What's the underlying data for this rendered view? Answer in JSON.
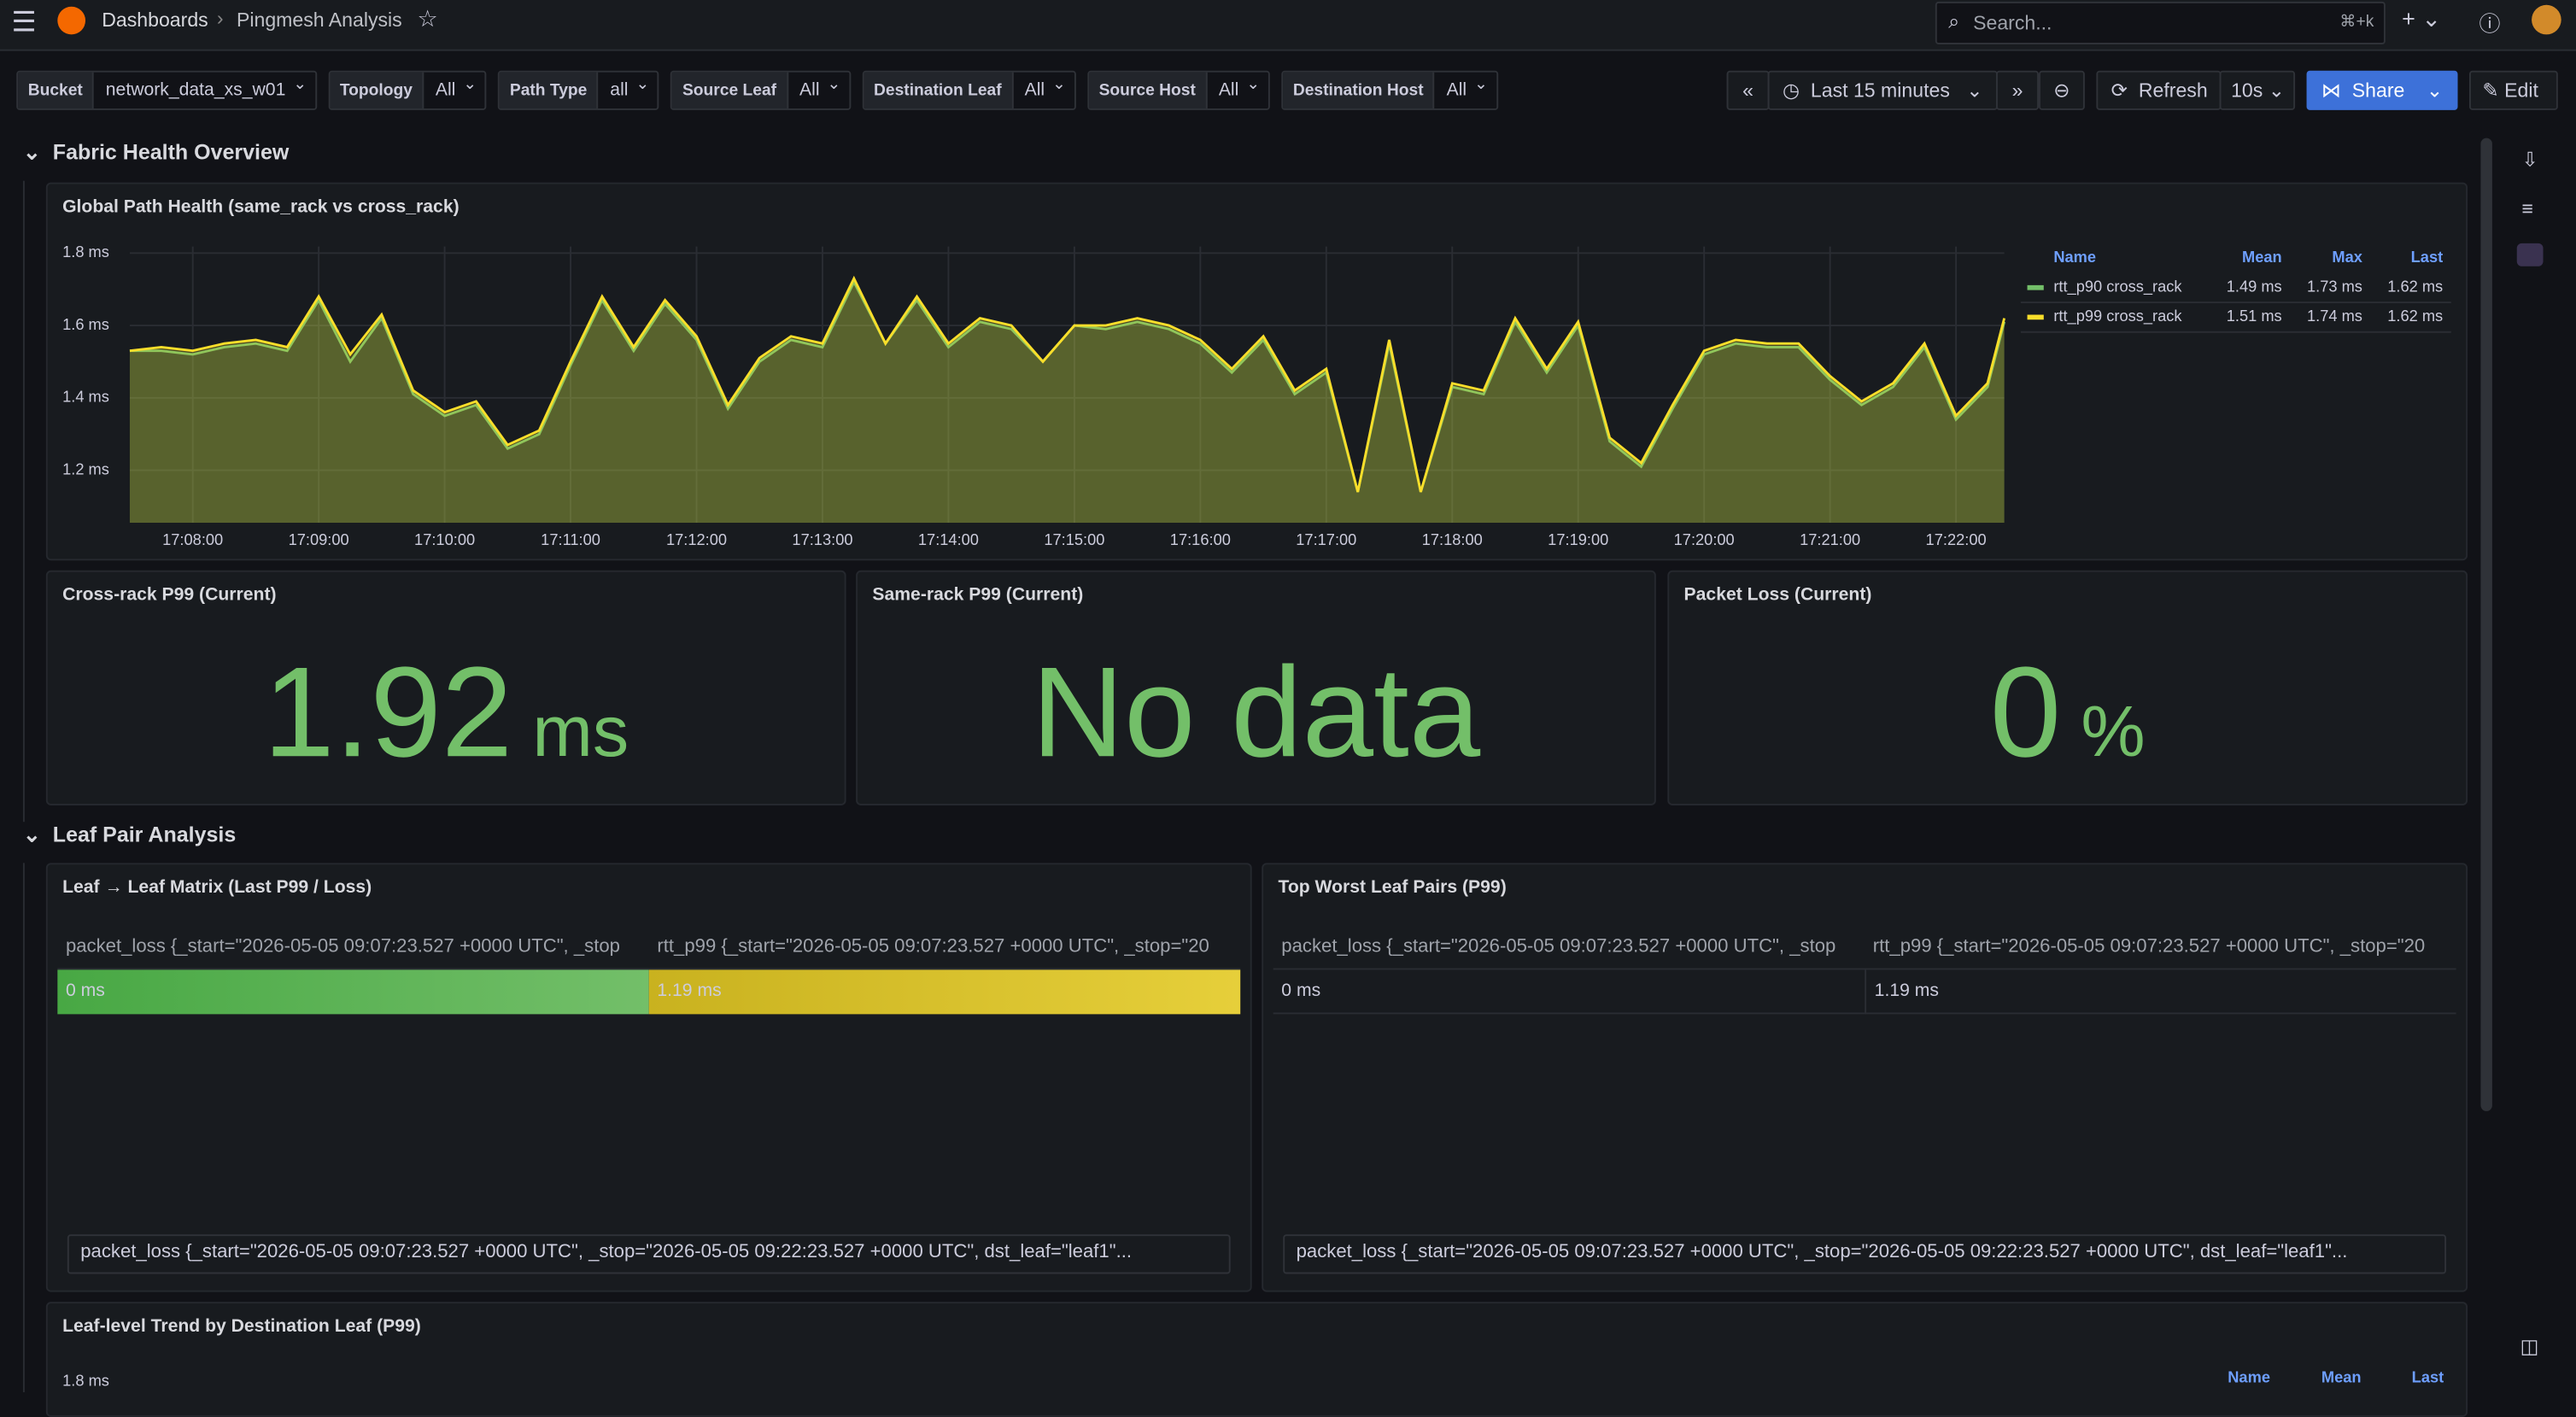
{
  "header": {
    "breadcrumb": [
      "Dashboards",
      "Pingmesh Analysis"
    ],
    "search": "Search...",
    "shortcut": "⌘+k"
  },
  "variables": [
    {
      "label": "Bucket",
      "value": "network_data_xs_w01"
    },
    {
      "label": "Topology",
      "value": "All"
    },
    {
      "label": "Path Type",
      "value": "all"
    },
    {
      "label": "Source Leaf",
      "value": "All"
    },
    {
      "label": "Destination Leaf",
      "value": "All"
    },
    {
      "label": "Source Host",
      "value": "All"
    },
    {
      "label": "Destination Host",
      "value": "All"
    }
  ],
  "time_controls": {
    "range": "Last 15 minutes",
    "refresh": "Refresh",
    "interval": "10s",
    "share": "Share",
    "edit": "Edit"
  },
  "rows": [
    "Fabric Health Overview",
    "Leaf Pair Analysis"
  ],
  "chart_data": {
    "type": "line",
    "title": "Global Path Health (same_rack vs cross_rack)",
    "x": [
      61650,
      61665,
      61680,
      61695,
      61710,
      61725,
      61740,
      61755,
      61770,
      61785,
      61800,
      61815,
      61830,
      61845,
      61860,
      61875,
      61890,
      61905,
      61920,
      61935,
      61950,
      61965,
      61980,
      61995,
      62010,
      62025,
      62040,
      62055,
      62070,
      62085,
      62100,
      62115,
      62130,
      62145,
      62160,
      62175,
      62190,
      62205,
      62220,
      62235,
      62250,
      62265,
      62280,
      62295,
      62310,
      62325,
      62340,
      62355,
      62370,
      62385,
      62400,
      62415,
      62430,
      62445,
      62460,
      62475,
      62490,
      62505,
      62520,
      62535,
      62543
    ],
    "xlim": [
      61650,
      62543
    ],
    "xticks": [
      {
        "value": 61680,
        "label": "17:08:00"
      },
      {
        "value": 61740,
        "label": "17:09:00"
      },
      {
        "value": 61800,
        "label": "17:10:00"
      },
      {
        "value": 61860,
        "label": "17:11:00"
      },
      {
        "value": 61920,
        "label": "17:12:00"
      },
      {
        "value": 61980,
        "label": "17:13:00"
      },
      {
        "value": 62040,
        "label": "17:14:00"
      },
      {
        "value": 62100,
        "label": "17:15:00"
      },
      {
        "value": 62160,
        "label": "17:16:00"
      },
      {
        "value": 62220,
        "label": "17:17:00"
      },
      {
        "value": 62280,
        "label": "17:18:00"
      },
      {
        "value": 62340,
        "label": "17:19:00"
      },
      {
        "value": 62400,
        "label": "17:20:00"
      },
      {
        "value": 62460,
        "label": "17:21:00"
      },
      {
        "value": 62520,
        "label": "17:22:00"
      }
    ],
    "ylim": [
      1.055,
      1.818
    ],
    "yticks": [
      {
        "value": 1.2,
        "label": "1.2 ms"
      },
      {
        "value": 1.4,
        "label": "1.4 ms"
      },
      {
        "value": 1.6,
        "label": "1.6 ms"
      },
      {
        "value": 1.8,
        "label": "1.8 ms"
      }
    ],
    "grid": true,
    "series": [
      {
        "name": "rtt_p90 cross_rack",
        "color": "#73bf69",
        "values": [
          1.53,
          1.53,
          1.52,
          1.54,
          1.55,
          1.53,
          1.67,
          1.5,
          1.62,
          1.41,
          1.35,
          1.38,
          1.26,
          1.3,
          1.49,
          1.67,
          1.53,
          1.66,
          1.56,
          1.37,
          1.5,
          1.56,
          1.54,
          1.72,
          1.55,
          1.67,
          1.54,
          1.61,
          1.59,
          1.5,
          1.6,
          1.59,
          1.61,
          1.59,
          1.55,
          1.47,
          1.56,
          1.41,
          1.47,
          1.14,
          1.55,
          1.14,
          1.43,
          1.41,
          1.61,
          1.47,
          1.6,
          1.28,
          1.21,
          1.37,
          1.52,
          1.55,
          1.54,
          1.54,
          1.45,
          1.38,
          1.43,
          1.54,
          1.34,
          1.43,
          1.61
        ]
      },
      {
        "name": "rtt_p99 cross_rack",
        "color": "#fade2a",
        "values": [
          1.53,
          1.54,
          1.53,
          1.55,
          1.56,
          1.54,
          1.68,
          1.52,
          1.63,
          1.42,
          1.36,
          1.39,
          1.27,
          1.31,
          1.5,
          1.68,
          1.54,
          1.67,
          1.57,
          1.38,
          1.51,
          1.57,
          1.55,
          1.73,
          1.55,
          1.68,
          1.55,
          1.62,
          1.6,
          1.5,
          1.6,
          1.6,
          1.62,
          1.6,
          1.56,
          1.48,
          1.57,
          1.42,
          1.48,
          1.14,
          1.56,
          1.14,
          1.44,
          1.42,
          1.62,
          1.48,
          1.61,
          1.29,
          1.22,
          1.38,
          1.53,
          1.56,
          1.55,
          1.55,
          1.46,
          1.39,
          1.44,
          1.55,
          1.35,
          1.44,
          1.62
        ]
      }
    ],
    "legend_columns": [
      "Name",
      "Mean",
      "Max",
      "Last"
    ],
    "legend_stats": [
      [
        "1.49 ms",
        "1.73 ms",
        "1.62 ms"
      ],
      [
        "1.51 ms",
        "1.74 ms",
        "1.62 ms"
      ]
    ]
  },
  "stats": [
    {
      "title": "Cross-rack P99 (Current)",
      "value": 1.92,
      "unit": "ms"
    },
    {
      "title": "Same-rack P99 (Current)",
      "value": "No data"
    },
    {
      "title": "Packet Loss (Current)",
      "value": 0,
      "unit": "%"
    }
  ],
  "tables": [
    {
      "title": "Leaf → Leaf Matrix (Last P99 / Loss)",
      "headers": [
        "packet_loss {_start=\"2026-05-05 09:07:23.527 +0000 UTC\", _stop",
        "rtt_p99 {_start=\"2026-05-05 09:07:23.527 +0000 UTC\", _stop=\"20"
      ],
      "rows": [
        [
          "0 ms",
          "1.19 ms"
        ]
      ],
      "selector": "packet_loss {_start=\"2026-05-05 09:07:23.527 +0000 UTC\", _stop=\"2026-05-05 09:22:23.527 +0000 UTC\", dst_leaf=\"leaf1\"..."
    },
    {
      "title": "Top Worst Leaf Pairs (P99)",
      "headers": [
        "packet_loss {_start=\"2026-05-05 09:07:23.527 +0000 UTC\", _stop",
        "rtt_p99 {_start=\"2026-05-05 09:07:23.527 +0000 UTC\", _stop=\"20"
      ],
      "rows": [
        [
          "0 ms",
          "1.19 ms"
        ]
      ],
      "selector": "packet_loss {_start=\"2026-05-05 09:07:23.527 +0000 UTC\", _stop=\"2026-05-05 09:22:23.527 +0000 UTC\", dst_leaf=\"leaf1\"..."
    }
  ],
  "trend_panel": {
    "title": "Leaf-level Trend by Destination Leaf (P99)",
    "ytick": "1.8 ms",
    "legend_columns": [
      "Name",
      "Mean",
      "Last"
    ]
  }
}
